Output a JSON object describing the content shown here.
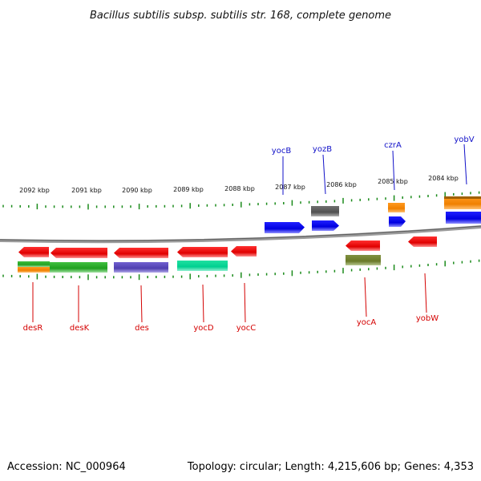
{
  "title": "Bacillus subtilis subsp. subtilis str. 168, complete genome",
  "footer": {
    "accession": "Accession: NC_000964",
    "summary": "Topology: circular; Length: 4,215,606 bp; Genes: 4,353"
  },
  "tick_labels": [
    "2092 kbp",
    "2091 kbp",
    "2090 kbp",
    "2089 kbp",
    "2088 kbp",
    "2087 kbp",
    "2086 kbp",
    "2085 kbp",
    "2084 kbp"
  ],
  "genes_bottom": [
    {
      "name": "desR",
      "color": "#d40000"
    },
    {
      "name": "desK",
      "color": "#d40000"
    },
    {
      "name": "des",
      "color": "#d40000"
    },
    {
      "name": "yocD",
      "color": "#d40000"
    },
    {
      "name": "yocC",
      "color": "#d40000"
    },
    {
      "name": "yocA",
      "color": "#d40000"
    },
    {
      "name": "yobW",
      "color": "#d40000"
    }
  ],
  "genes_top": [
    {
      "name": "yocB",
      "color": "#1010c8"
    },
    {
      "name": "yozB",
      "color": "#1010c8"
    },
    {
      "name": "czrA",
      "color": "#1010c8"
    },
    {
      "name": "yobV",
      "color": "#1010c8"
    }
  ],
  "colors": {
    "backbone": "#808080",
    "tick": "#1a8a1a",
    "forward_gene": "#0000ee",
    "reverse_gene": "#ee0000"
  }
}
